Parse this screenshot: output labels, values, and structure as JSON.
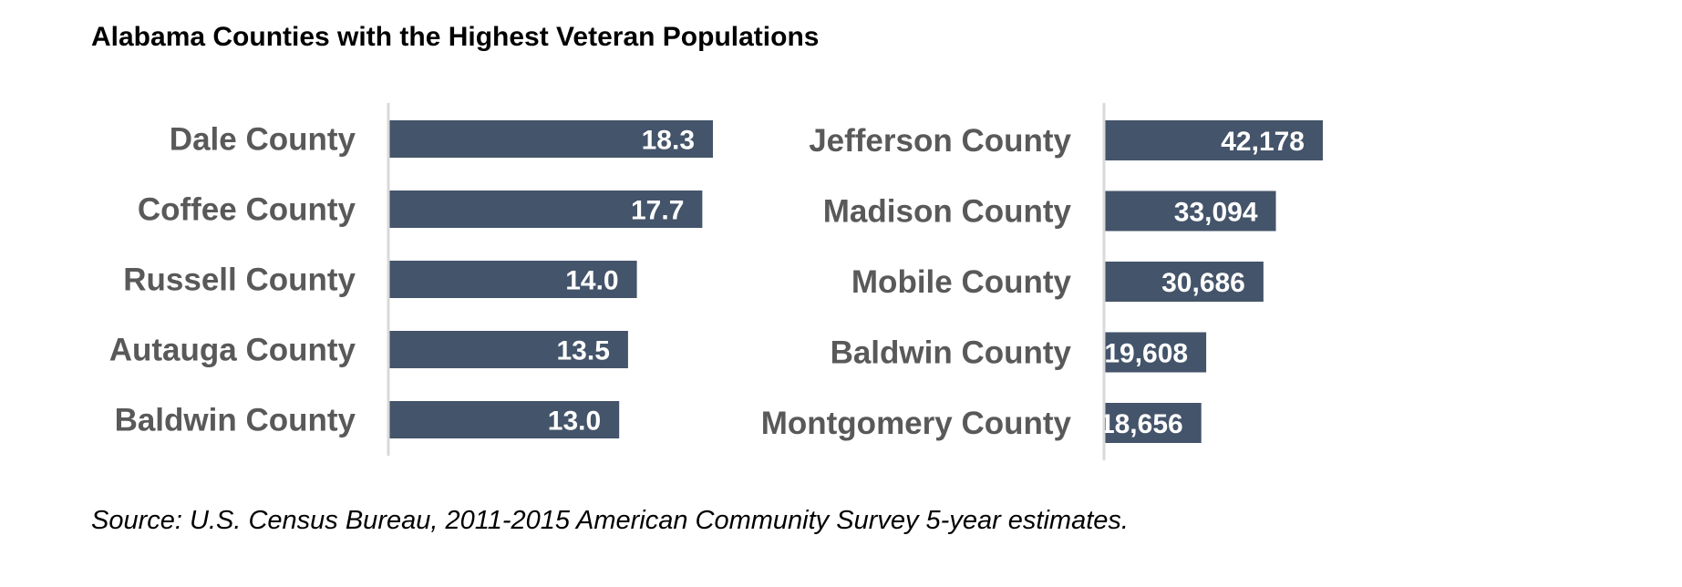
{
  "title": "Alabama Counties with the Highest Veteran Populations",
  "source": "Source: U.S. Census Bureau, 2011-2015 American Community Survey 5-year estimates.",
  "colors": {
    "bar": "#44546a",
    "axis": "#d9d9d9",
    "category_text": "#595959",
    "value_text": "#ffffff"
  },
  "chart_data": [
    {
      "type": "bar",
      "orientation": "horizontal",
      "categories": [
        "Dale County",
        "Coffee County",
        "Russell County",
        "Autauga County",
        "Baldwin County"
      ],
      "values": [
        18.3,
        17.7,
        14.0,
        13.5,
        13.0
      ],
      "value_labels": [
        "18.3",
        "17.7",
        "14.0",
        "13.5",
        "13.0"
      ],
      "xlim": [
        0,
        20
      ],
      "grid": false,
      "legend": "none"
    },
    {
      "type": "bar",
      "orientation": "horizontal",
      "categories": [
        "Jefferson County",
        "Madison County",
        "Mobile County",
        "Baldwin County",
        "Montgomery County"
      ],
      "values": [
        42178,
        33094,
        30686,
        19608,
        18656
      ],
      "value_labels": [
        "42,178",
        "33,094",
        "30,686",
        "19,608",
        "18,656"
      ],
      "xlim": [
        0,
        60000
      ],
      "grid": false,
      "legend": "none"
    }
  ]
}
